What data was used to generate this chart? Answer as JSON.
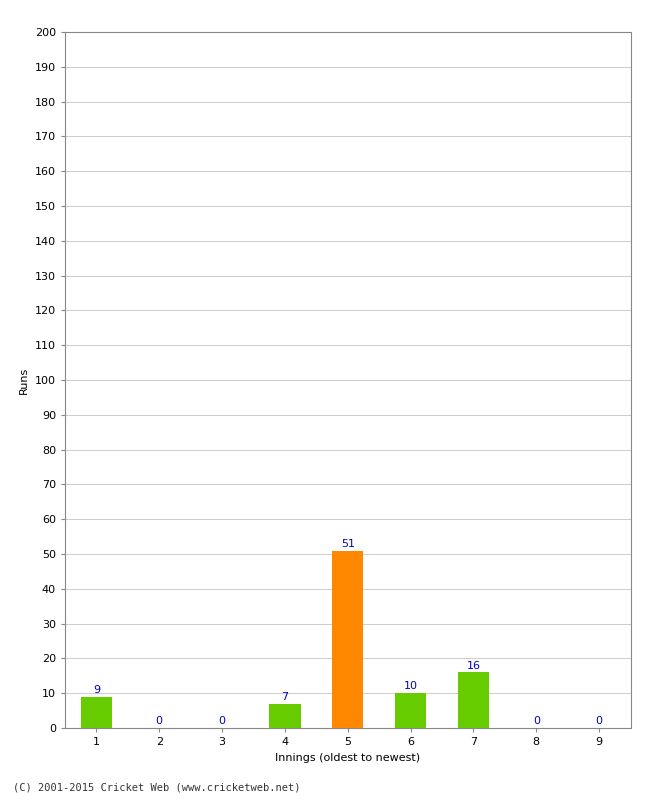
{
  "xlabel": "Innings (oldest to newest)",
  "ylabel": "Runs",
  "categories": [
    1,
    2,
    3,
    4,
    5,
    6,
    7,
    8,
    9
  ],
  "values": [
    9,
    0,
    0,
    7,
    51,
    10,
    16,
    0,
    0
  ],
  "bar_colors": [
    "#66cc00",
    "#66cc00",
    "#66cc00",
    "#66cc00",
    "#ff8800",
    "#66cc00",
    "#66cc00",
    "#66cc00",
    "#66cc00"
  ],
  "label_colors": [
    "#0000cc",
    "#0000cc",
    "#0000cc",
    "#0000cc",
    "#0000cc",
    "#0000cc",
    "#0000cc",
    "#0000cc",
    "#0000cc"
  ],
  "ylim": [
    0,
    200
  ],
  "yticks": [
    0,
    10,
    20,
    30,
    40,
    50,
    60,
    70,
    80,
    90,
    100,
    110,
    120,
    130,
    140,
    150,
    160,
    170,
    180,
    190,
    200
  ],
  "background_color": "#ffffff",
  "grid_color": "#cccccc",
  "footer": "(C) 2001-2015 Cricket Web (www.cricketweb.net)",
  "bar_width": 0.5,
  "label_fontsize": 8,
  "axis_fontsize": 8,
  "ylabel_fontsize": 8,
  "spine_color": "#888888"
}
